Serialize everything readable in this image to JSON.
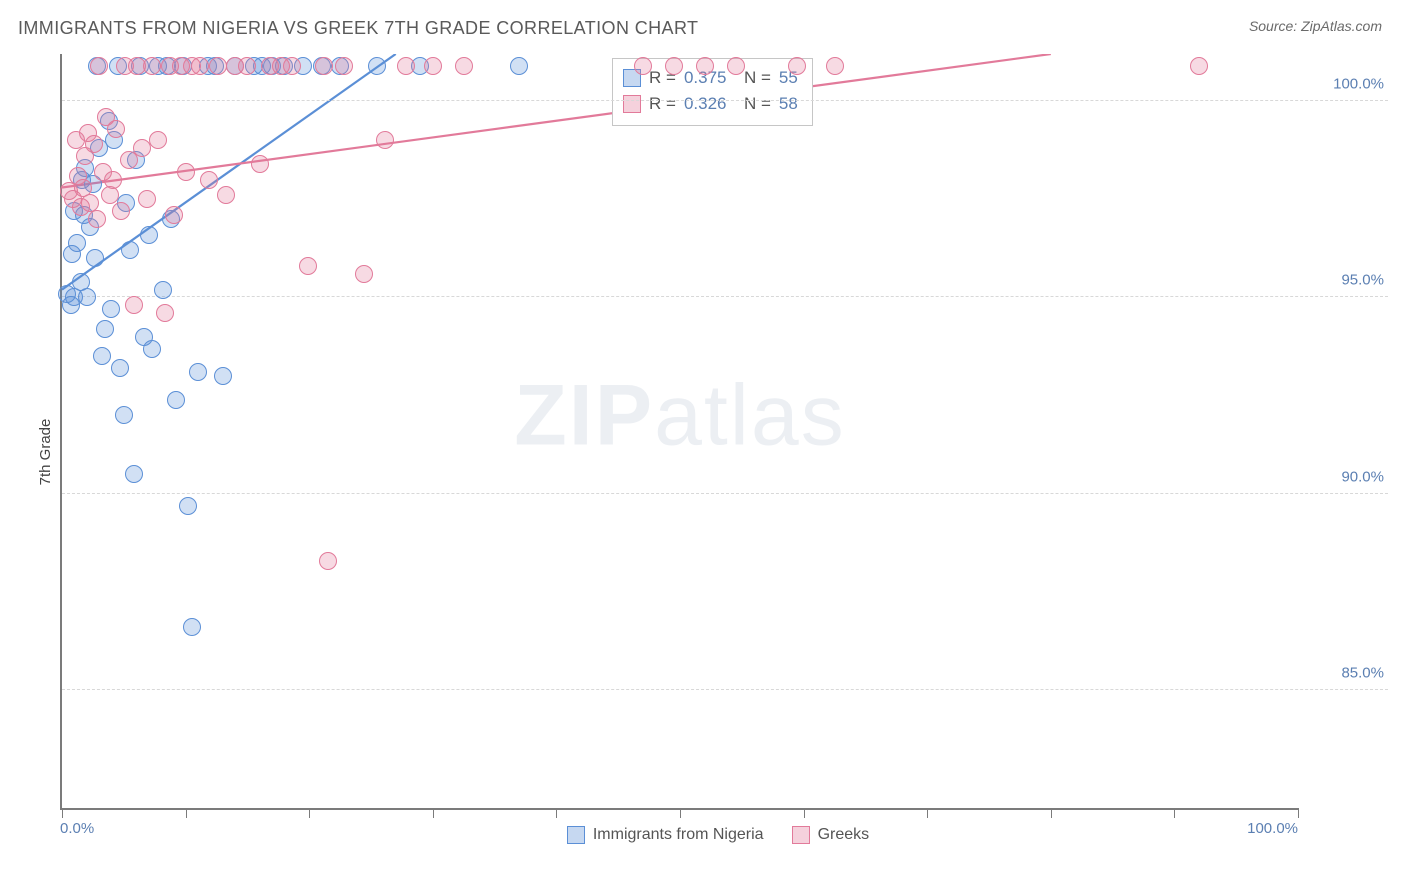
{
  "header": {
    "title": "IMMIGRANTS FROM NIGERIA VS GREEK 7TH GRADE CORRELATION CHART",
    "source": "Source: ZipAtlas.com"
  },
  "chart": {
    "type": "scatter",
    "ylabel": "7th Grade",
    "xlim": [
      0,
      100
    ],
    "ylim": [
      82,
      101.2
    ],
    "xtick_positions": [
      0,
      10,
      20,
      30,
      40,
      50,
      60,
      70,
      80,
      90,
      100
    ],
    "xtick_labels_shown": {
      "0": "0.0%",
      "100": "100.0%"
    },
    "ytick_positions": [
      85,
      90,
      95,
      100
    ],
    "ytick_labels": {
      "85": "85.0%",
      "90": "90.0%",
      "95": "95.0%",
      "100": "100.0%"
    },
    "grid_color": "#d8d8d8",
    "axis_color": "#7b7b7b",
    "tick_label_color": "#5b7fb2",
    "background_color": "#ffffff",
    "marker_radius": 9,
    "marker_stroke_width": 1.4,
    "marker_fill_opacity": 0.28,
    "watermark": {
      "text_bold": "ZIP",
      "text_light": "atlas"
    },
    "series": [
      {
        "name": "Immigrants from Nigeria",
        "color_stroke": "#5b8fd6",
        "color_fill": "#5b8fd6",
        "R": 0.375,
        "N": 55,
        "trend": {
          "x1": 0,
          "y1": 95.2,
          "x2": 27,
          "y2": 101.2,
          "width": 2.2
        },
        "points": [
          [
            0.4,
            95.1
          ],
          [
            0.7,
            94.8
          ],
          [
            0.8,
            96.1
          ],
          [
            1.0,
            97.2
          ],
          [
            1.0,
            95.0
          ],
          [
            1.2,
            96.4
          ],
          [
            1.5,
            95.4
          ],
          [
            1.6,
            98.0
          ],
          [
            1.8,
            97.1
          ],
          [
            1.9,
            98.3
          ],
          [
            2.0,
            95.0
          ],
          [
            2.3,
            96.8
          ],
          [
            2.5,
            97.9
          ],
          [
            2.7,
            96.0
          ],
          [
            2.8,
            100.9
          ],
          [
            3.0,
            98.8
          ],
          [
            3.2,
            93.5
          ],
          [
            3.5,
            94.2
          ],
          [
            3.8,
            99.5
          ],
          [
            4.0,
            94.7
          ],
          [
            4.2,
            99.0
          ],
          [
            4.5,
            100.9
          ],
          [
            4.7,
            93.2
          ],
          [
            5.0,
            92.0
          ],
          [
            5.2,
            97.4
          ],
          [
            5.5,
            96.2
          ],
          [
            5.8,
            90.5
          ],
          [
            6.0,
            98.5
          ],
          [
            6.3,
            100.9
          ],
          [
            6.6,
            94.0
          ],
          [
            7.0,
            96.6
          ],
          [
            7.3,
            93.7
          ],
          [
            7.8,
            100.9
          ],
          [
            8.2,
            95.2
          ],
          [
            8.5,
            100.9
          ],
          [
            8.8,
            97.0
          ],
          [
            9.2,
            92.4
          ],
          [
            9.8,
            100.9
          ],
          [
            10.2,
            89.7
          ],
          [
            10.5,
            86.6
          ],
          [
            11.0,
            93.1
          ],
          [
            11.8,
            100.9
          ],
          [
            12.4,
            100.9
          ],
          [
            13.0,
            93.0
          ],
          [
            14.0,
            100.9
          ],
          [
            15.5,
            100.9
          ],
          [
            16.2,
            100.9
          ],
          [
            17.0,
            100.9
          ],
          [
            18.0,
            100.9
          ],
          [
            19.5,
            100.9
          ],
          [
            21.0,
            100.9
          ],
          [
            22.5,
            100.9
          ],
          [
            25.5,
            100.9
          ],
          [
            29.0,
            100.9
          ],
          [
            37.0,
            100.9
          ]
        ]
      },
      {
        "name": "Greeks",
        "color_stroke": "#e27a9a",
        "color_fill": "#e27a9a",
        "R": 0.326,
        "N": 58,
        "trend": {
          "x1": 0,
          "y1": 97.8,
          "x2": 80,
          "y2": 101.2,
          "width": 2.2
        },
        "points": [
          [
            0.6,
            97.7
          ],
          [
            0.9,
            97.5
          ],
          [
            1.1,
            99.0
          ],
          [
            1.3,
            98.1
          ],
          [
            1.5,
            97.3
          ],
          [
            1.7,
            97.8
          ],
          [
            1.9,
            98.6
          ],
          [
            2.1,
            99.2
          ],
          [
            2.3,
            97.4
          ],
          [
            2.6,
            98.9
          ],
          [
            2.8,
            97.0
          ],
          [
            3.0,
            100.9
          ],
          [
            3.3,
            98.2
          ],
          [
            3.6,
            99.6
          ],
          [
            3.9,
            97.6
          ],
          [
            4.1,
            98.0
          ],
          [
            4.4,
            99.3
          ],
          [
            4.8,
            97.2
          ],
          [
            5.1,
            100.9
          ],
          [
            5.4,
            98.5
          ],
          [
            5.8,
            94.8
          ],
          [
            6.1,
            100.9
          ],
          [
            6.5,
            98.8
          ],
          [
            6.9,
            97.5
          ],
          [
            7.3,
            100.9
          ],
          [
            7.8,
            99.0
          ],
          [
            8.3,
            94.6
          ],
          [
            8.7,
            100.9
          ],
          [
            9.1,
            97.1
          ],
          [
            9.6,
            100.9
          ],
          [
            10.0,
            98.2
          ],
          [
            10.5,
            100.9
          ],
          [
            11.2,
            100.9
          ],
          [
            11.9,
            98.0
          ],
          [
            12.6,
            100.9
          ],
          [
            13.3,
            97.6
          ],
          [
            14.0,
            100.9
          ],
          [
            15.0,
            100.9
          ],
          [
            16.0,
            98.4
          ],
          [
            16.8,
            100.9
          ],
          [
            17.7,
            100.9
          ],
          [
            18.6,
            100.9
          ],
          [
            19.9,
            95.8
          ],
          [
            21.2,
            100.9
          ],
          [
            22.8,
            100.9
          ],
          [
            24.4,
            95.6
          ],
          [
            26.1,
            99.0
          ],
          [
            27.8,
            100.9
          ],
          [
            30.0,
            100.9
          ],
          [
            32.5,
            100.9
          ],
          [
            21.5,
            88.3
          ],
          [
            47.0,
            100.9
          ],
          [
            49.5,
            100.9
          ],
          [
            52.0,
            100.9
          ],
          [
            54.5,
            100.9
          ],
          [
            59.5,
            100.9
          ],
          [
            62.5,
            100.9
          ],
          [
            92.0,
            100.9
          ]
        ]
      }
    ],
    "correlation_box": {
      "left_pct": 44.5,
      "top_y": 101.1
    },
    "bottom_legend": [
      {
        "label": "Immigrants from Nigeria",
        "color": "#5b8fd6"
      },
      {
        "label": "Greeks",
        "color": "#e27a9a"
      }
    ]
  }
}
